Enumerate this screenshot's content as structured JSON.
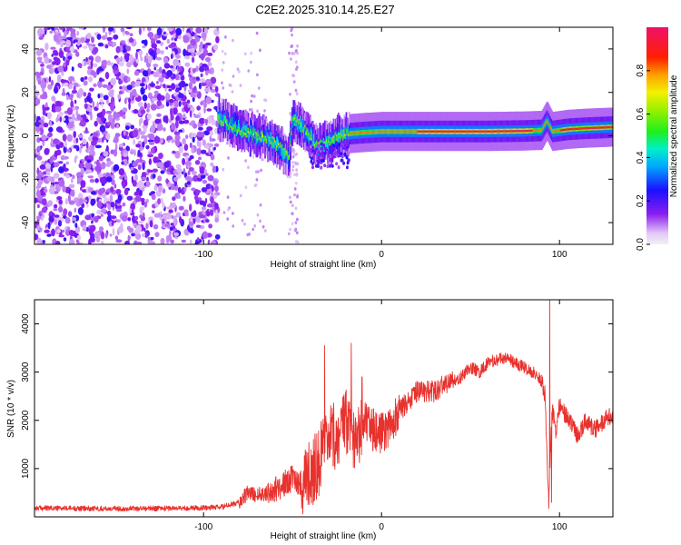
{
  "title": "C2E2.2025.310.14.25.E27",
  "chart_data": [
    {
      "type": "heatmap",
      "name": "spectrogram",
      "xlabel": "Height of straight line (km)",
      "ylabel": "Frequency (Hz)",
      "xlim": [
        -195,
        130
      ],
      "ylim": [
        -50,
        50
      ],
      "x_ticks": [
        -100,
        0,
        100
      ],
      "x_tick_labels": [
        "-100",
        "0",
        "100"
      ],
      "y_ticks": [
        -40,
        -20,
        0,
        20,
        40
      ],
      "y_tick_labels": [
        "-40",
        "-20",
        "0",
        "20",
        "40"
      ],
      "noise_region": {
        "x_from": -195,
        "x_to": -92,
        "f_from": -50,
        "f_to": 50,
        "amplitude": "0.1-0.3"
      },
      "ridge": [
        {
          "x": -92,
          "f": 8
        },
        {
          "x": -85,
          "f": 5
        },
        {
          "x": -80,
          "f": 3
        },
        {
          "x": -75,
          "f": 1
        },
        {
          "x": -70,
          "f": 0
        },
        {
          "x": -65,
          "f": -1
        },
        {
          "x": -60,
          "f": -3
        },
        {
          "x": -55,
          "f": -7
        },
        {
          "x": -52,
          "f": -10
        },
        {
          "x": -50,
          "f": 8
        },
        {
          "x": -46,
          "f": 5
        },
        {
          "x": -42,
          "f": 2
        },
        {
          "x": -36,
          "f": -5
        },
        {
          "x": -30,
          "f": -3
        },
        {
          "x": -25,
          "f": 0
        },
        {
          "x": -18,
          "f": 1
        },
        {
          "x": -10,
          "f": 1.5
        },
        {
          "x": 0,
          "f": 2
        },
        {
          "x": 20,
          "f": 2
        },
        {
          "x": 40,
          "f": 2
        },
        {
          "x": 60,
          "f": 2
        },
        {
          "x": 80,
          "f": 2.2
        },
        {
          "x": 90,
          "f": 2.5
        },
        {
          "x": 93,
          "f": 7
        },
        {
          "x": 96,
          "f": 2
        },
        {
          "x": 105,
          "f": 3
        },
        {
          "x": 115,
          "f": 3.5
        },
        {
          "x": 130,
          "f": 4
        }
      ],
      "colorbar": {
        "label": "Normalized spectral amplitude",
        "range": [
          0,
          1
        ],
        "ticks": [
          0.0,
          0.2,
          0.4,
          0.6,
          0.8
        ],
        "tick_labels": [
          "0.0",
          "0.2",
          "0.4",
          "0.6",
          "0.8"
        ]
      }
    },
    {
      "type": "line",
      "name": "snr",
      "xlabel": "Height of straight line (km)",
      "ylabel": "SNR (10 * v/v)",
      "xlim": [
        -195,
        130
      ],
      "ylim": [
        0,
        4500
      ],
      "x_ticks": [
        -100,
        0,
        100
      ],
      "x_tick_labels": [
        "-100",
        "0",
        "100"
      ],
      "y_ticks": [
        1000,
        2000,
        3000,
        4000
      ],
      "y_tick_labels": [
        "1000",
        "2000",
        "3000",
        "4000"
      ],
      "series": [
        {
          "name": "SNR",
          "color": "#e8322e",
          "x": [
            -195,
            -150,
            -110,
            -90,
            -80,
            -75,
            -70,
            -60,
            -50,
            -45,
            -40,
            -35,
            -30,
            -25,
            -20,
            -15,
            -10,
            -5,
            0,
            10,
            20,
            30,
            35,
            40,
            45,
            50,
            55,
            60,
            65,
            70,
            75,
            80,
            85,
            88,
            90,
            92,
            93,
            94,
            95,
            96,
            98,
            100,
            105,
            110,
            115,
            120,
            125,
            130
          ],
          "values": [
            180,
            170,
            180,
            200,
            300,
            500,
            450,
            550,
            800,
            700,
            900,
            1200,
            1500,
            1700,
            1900,
            1700,
            2000,
            1800,
            1700,
            2200,
            2600,
            2600,
            2750,
            2800,
            2900,
            3100,
            3000,
            3200,
            3250,
            3300,
            3200,
            3100,
            3000,
            2900,
            2800,
            2500,
            1200,
            300,
            1500,
            2200,
            1800,
            2300,
            2000,
            1700,
            2000,
            1800,
            2000,
            2100
          ]
        }
      ],
      "spikes": [
        {
          "x": -32,
          "value": 3550
        },
        {
          "x": -17,
          "value": 3600
        },
        {
          "x": -11,
          "value": 2900
        },
        {
          "x": 94.5,
          "value": 4500
        },
        {
          "x": 95.5,
          "value": 300
        }
      ]
    }
  ]
}
